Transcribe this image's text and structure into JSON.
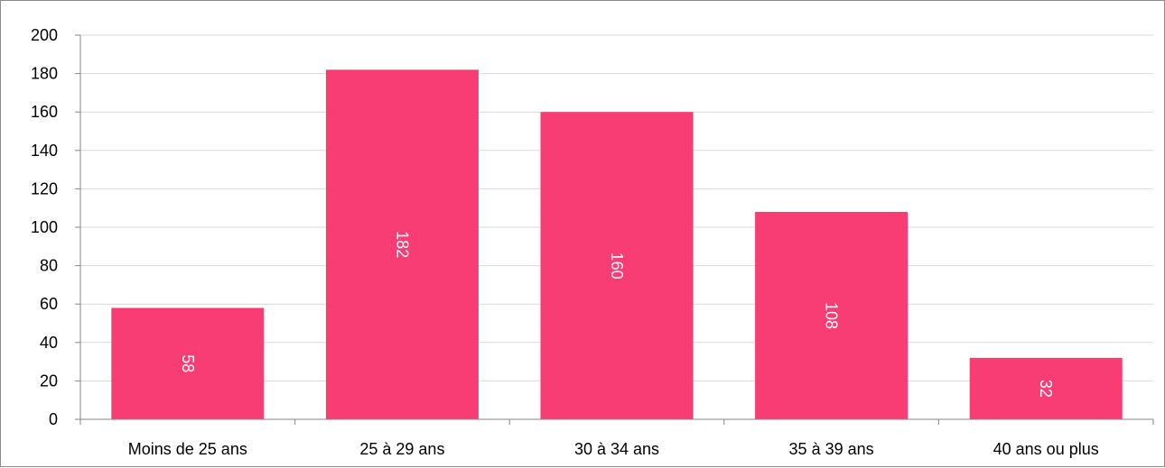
{
  "chart_data": {
    "type": "bar",
    "categories": [
      "Moins de 25 ans",
      "25 à 29 ans",
      "30 à 34 ans",
      "35 à 39 ans",
      "40 ans ou plus"
    ],
    "values": [
      58,
      182,
      160,
      108,
      32
    ],
    "data_labels": [
      "58",
      "182",
      "160",
      "108",
      "32"
    ],
    "title": "",
    "xlabel": "",
    "ylabel": "",
    "ylim": [
      0,
      200
    ],
    "yticks": [
      0,
      20,
      40,
      60,
      80,
      100,
      120,
      140,
      160,
      180,
      200
    ],
    "grid": true,
    "legend": "none",
    "data_label_orientation": "vertical",
    "colors": {
      "bar": "#f83c74",
      "grid": "#d9d9d9",
      "axis": "#868686",
      "label": "#ffffff"
    }
  }
}
